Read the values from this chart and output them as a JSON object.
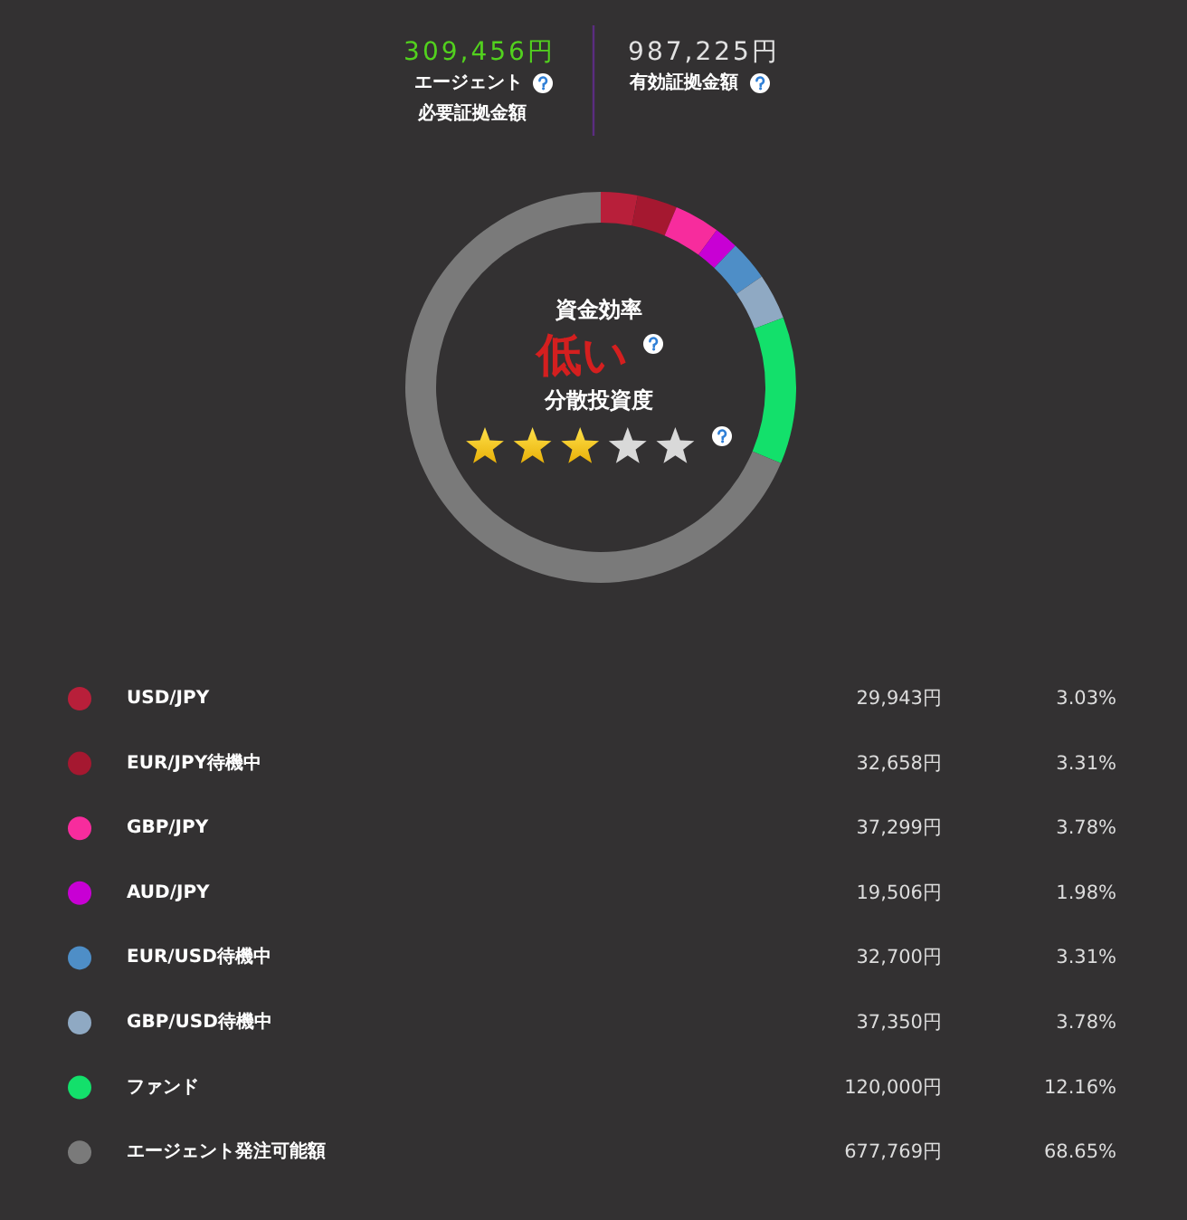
{
  "chart_data": {
    "type": "donut",
    "categories": [
      "USD/JPY",
      "EUR/JPY待機中",
      "GBP/JPY",
      "AUD/JPY",
      "EUR/USD待機中",
      "GBP/USD待機中",
      "ファンド",
      "エージェント発注可能額"
    ],
    "values": [
      29943,
      32658,
      37299,
      19506,
      32700,
      37350,
      120000,
      677769
    ],
    "colors": [
      "#b81f3a",
      "#a51830",
      "#f72c9d",
      "#c800d4",
      "#4e8ec7",
      "#8fa9c3",
      "#13e06b",
      "#7a7a7a"
    ],
    "value_labels": [
      "29,943円",
      "32,658円",
      "37,299円",
      "19,506円",
      "32,700円",
      "37,350円",
      "120,000円",
      "677,769円"
    ],
    "annotations": [
      "309,456円",
      "エージェント",
      "必要証拠金額",
      "987,225円",
      "有効証拠金額",
      "資金効率",
      "低い",
      "分散投資度",
      "3.03%",
      "3.31%",
      "3.78%",
      "1.98%",
      "3.31%",
      "3.78%",
      "12.16%",
      "68.65%"
    ],
    "legend": "bottom"
  }
}
